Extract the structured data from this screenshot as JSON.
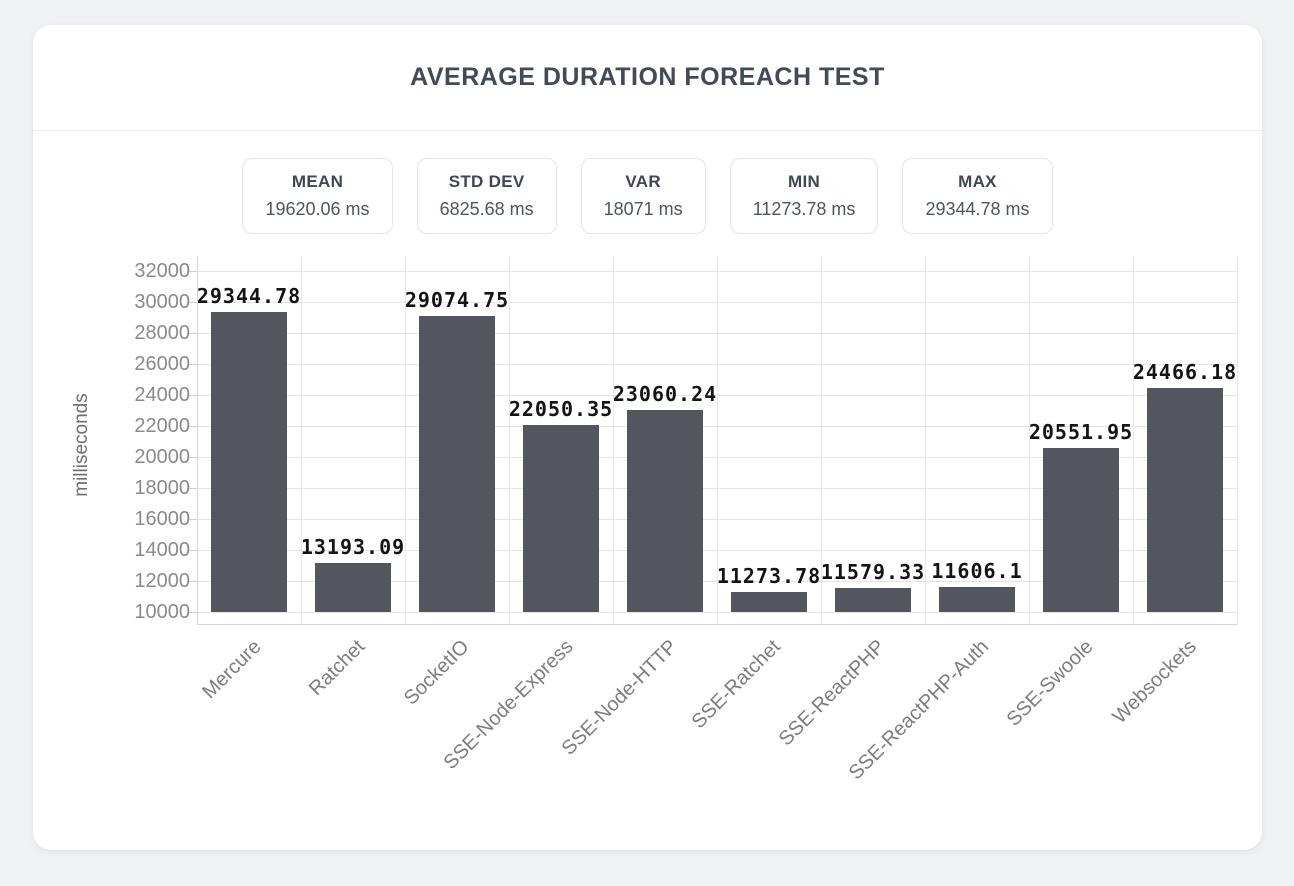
{
  "card": {
    "title": "AVERAGE DURATION FOREACH TEST"
  },
  "stats": [
    {
      "label": "MEAN",
      "value": "19620.06 ms"
    },
    {
      "label": "STD DEV",
      "value": "6825.68 ms"
    },
    {
      "label": "VAR",
      "value": "18071 ms"
    },
    {
      "label": "MIN",
      "value": "11273.78 ms"
    },
    {
      "label": "MAX",
      "value": "29344.78 ms"
    }
  ],
  "chart_data": {
    "type": "bar",
    "title": "AVERAGE DURATION FOREACH TEST",
    "xlabel": "",
    "ylabel": "milliseconds",
    "categories": [
      "Mercure",
      "Ratchet",
      "SocketIO",
      "SSE-Node-Express",
      "SSE-Node-HTTP",
      "SSE-Ratchet",
      "SSE-ReactPHP",
      "SSE-ReactPHP-Auth",
      "SSE-Swoole",
      "Websockets"
    ],
    "values": [
      29344.78,
      13193.09,
      29074.75,
      22050.35,
      23060.24,
      11273.78,
      11579.33,
      11606.1,
      20551.95,
      24466.18
    ],
    "value_labels": [
      "29344.78",
      "13193.09",
      "29074.75",
      "22050.35",
      "23060.24",
      "11273.78",
      "11579.33",
      "11606.1",
      "20551.95",
      "24466.18"
    ],
    "ylim": [
      10000,
      32000
    ],
    "ytick_step": 2000,
    "grid": true,
    "legend": false,
    "bar_color": "#54565d",
    "x_label_rotation_deg": 45
  }
}
